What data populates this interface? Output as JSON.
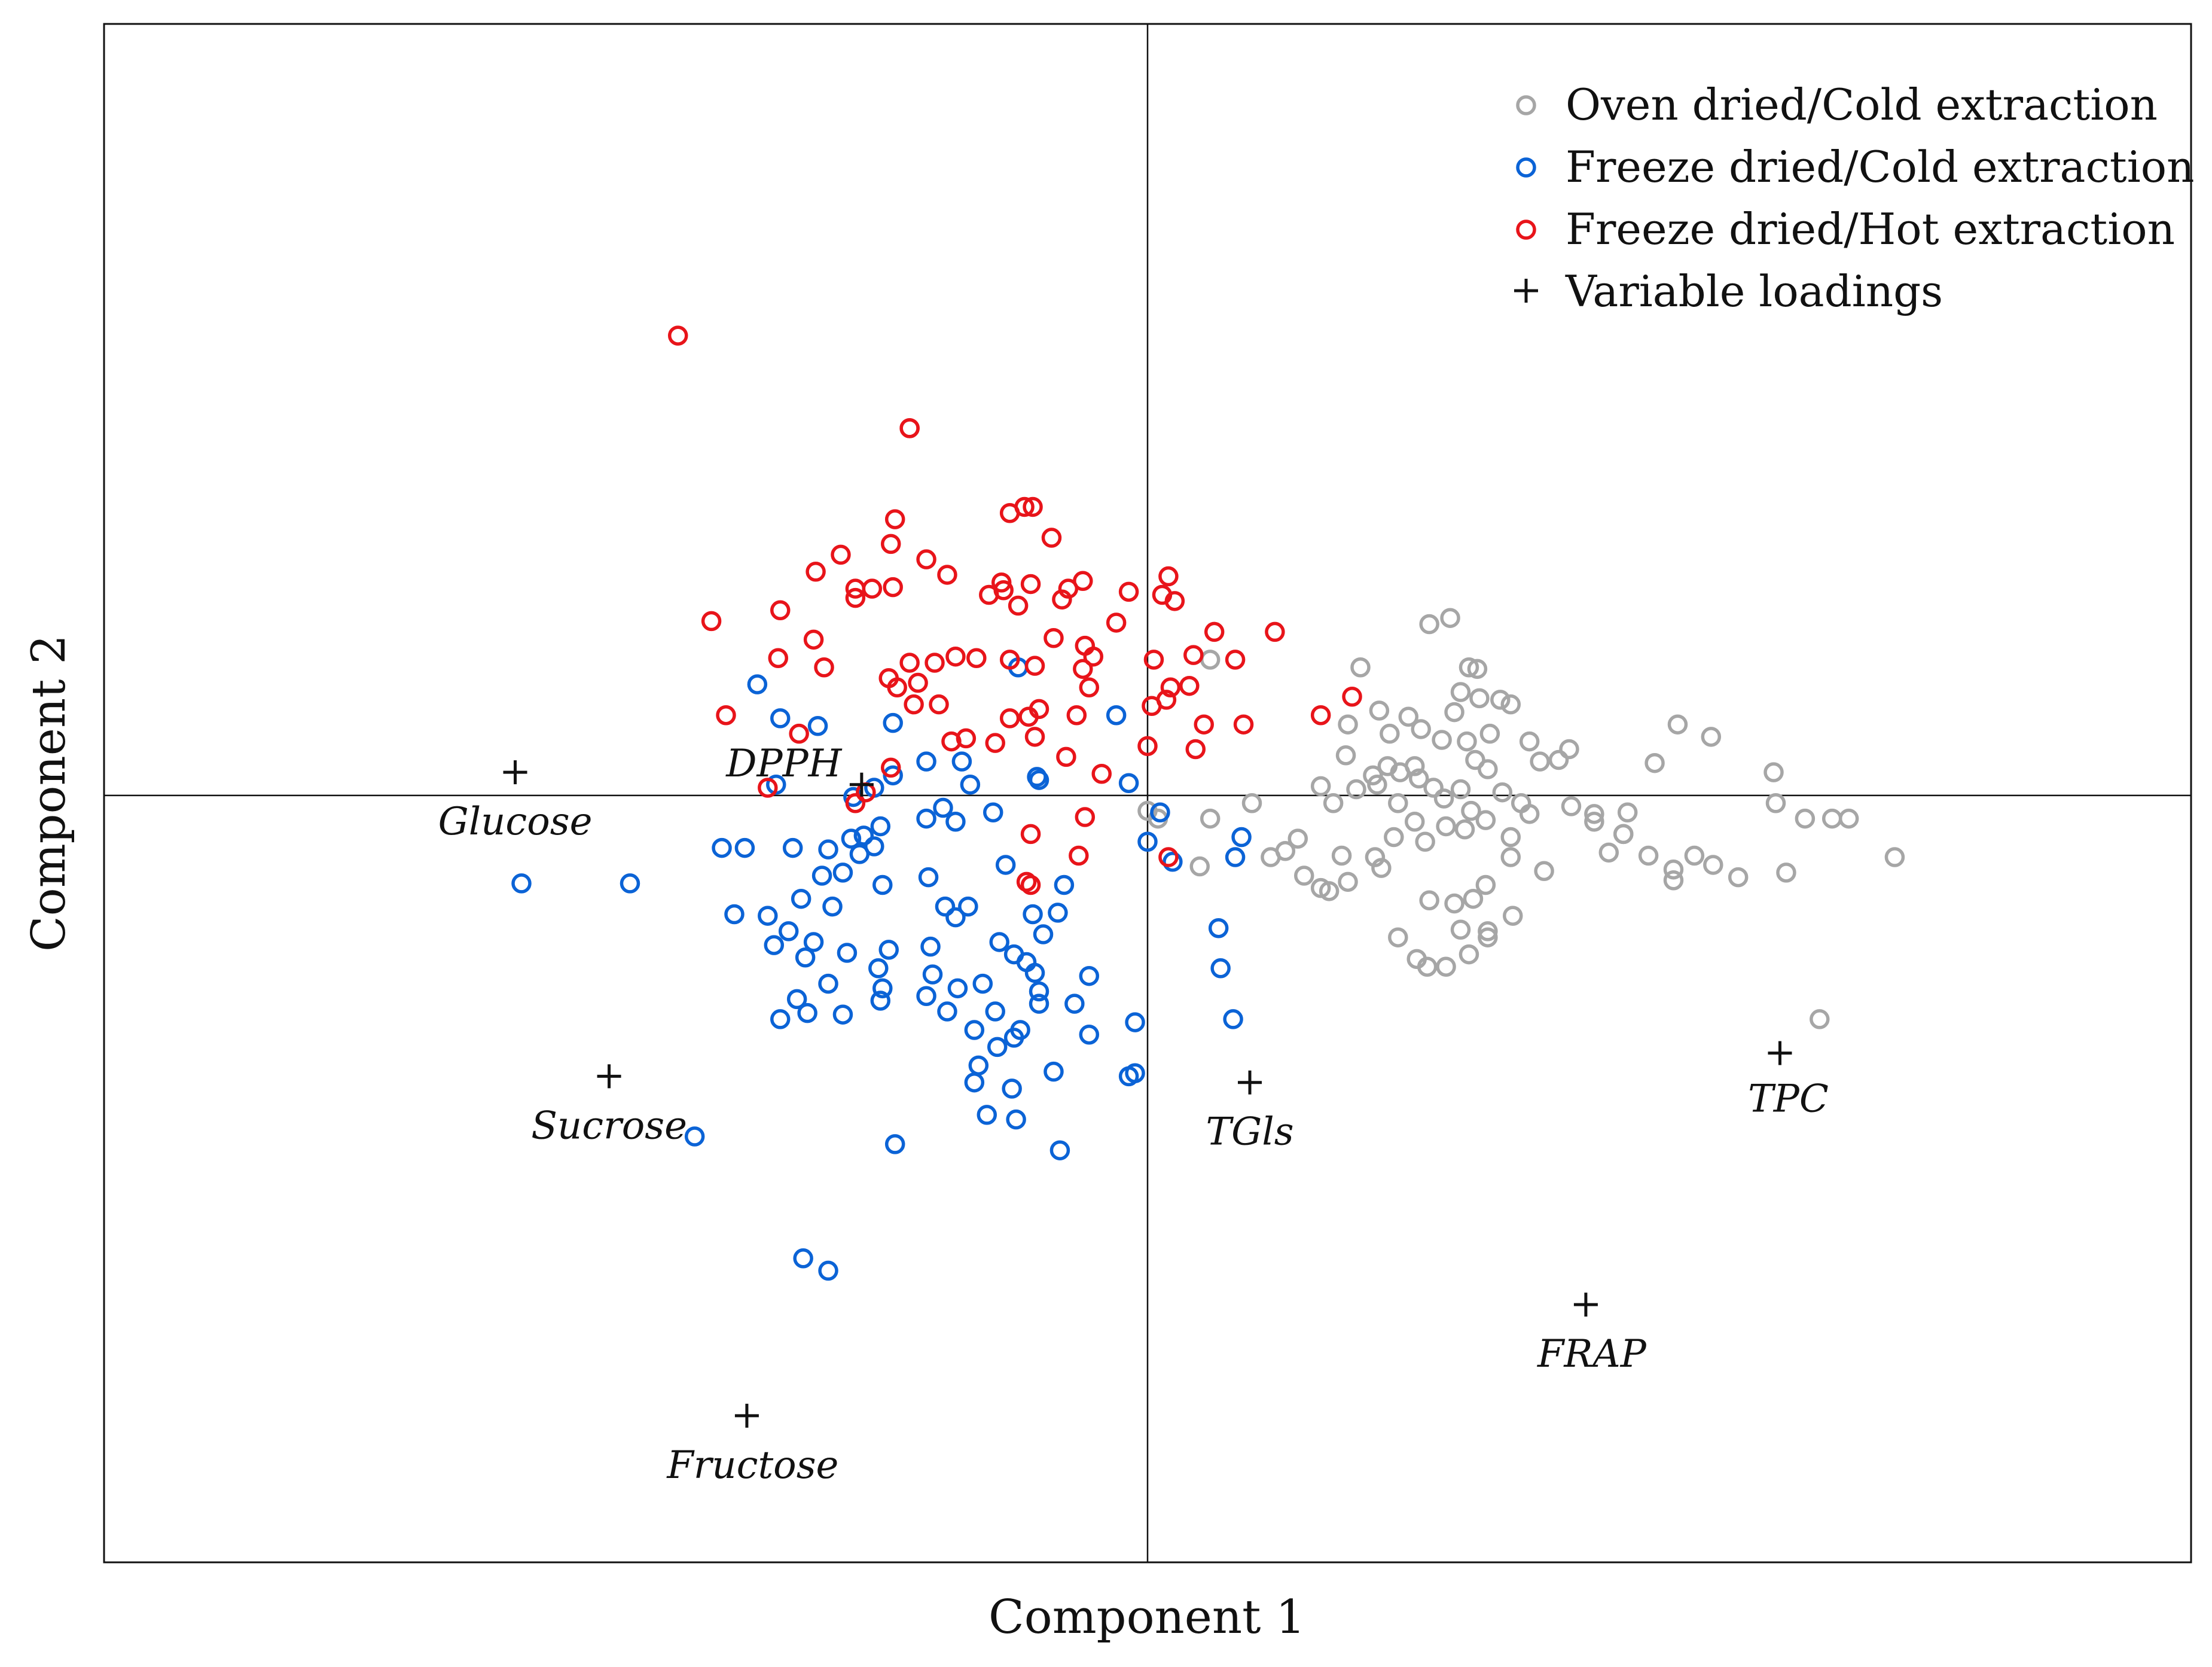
{
  "chart_data": {
    "type": "scatter",
    "title": "",
    "xlabel": "Component 1",
    "ylabel": "Component 2",
    "xlim": [
      -5.0,
      5.0
    ],
    "ylim": [
      -4.97,
      5.0
    ],
    "grid": false,
    "zero_lines": true,
    "legend_position": "top-right",
    "legend": [
      {
        "name": "Oven dried/Cold extraction",
        "marker": "circle",
        "color": "#a6a6a6"
      },
      {
        "name": "Freeze dried/Cold extraction",
        "marker": "circle",
        "color": "#0b63d6"
      },
      {
        "name": "Freeze dried/Hot extraction",
        "marker": "circle",
        "color": "#e8141a"
      },
      {
        "name": "Variable loadings",
        "marker": "plus",
        "color": "#111111"
      }
    ],
    "series": [
      {
        "name": "Oven dried/Cold extraction",
        "color": "#a6a6a6",
        "points": [
          [
            1.35,
            1.11
          ],
          [
            1.45,
            1.15
          ],
          [
            1.02,
            0.83
          ],
          [
            1.11,
            0.55
          ],
          [
            1.25,
            0.51
          ],
          [
            1.16,
            0.4
          ],
          [
            1.31,
            0.43
          ],
          [
            0.96,
            0.46
          ],
          [
            1.54,
            0.83
          ],
          [
            1.58,
            0.82
          ],
          [
            1.69,
            0.62
          ],
          [
            1.74,
            0.59
          ],
          [
            1.59,
            0.63
          ],
          [
            1.47,
            0.54
          ],
          [
            1.5,
            0.67
          ],
          [
            1.64,
            0.4
          ],
          [
            1.83,
            0.35
          ],
          [
            2.02,
            0.3
          ],
          [
            1.53,
            0.35
          ],
          [
            1.41,
            0.36
          ],
          [
            1.28,
            0.19
          ],
          [
            1.15,
            0.19
          ],
          [
            0.95,
            0.26
          ],
          [
            0.83,
            0.06
          ],
          [
            0.89,
            -0.05
          ],
          [
            1.0,
            0.04
          ],
          [
            1.1,
            0.07
          ],
          [
            1.21,
            0.15
          ],
          [
            1.3,
            0.11
          ],
          [
            1.37,
            0.05
          ],
          [
            1.42,
            -0.02
          ],
          [
            1.5,
            0.04
          ],
          [
            1.57,
            0.23
          ],
          [
            1.63,
            0.17
          ],
          [
            1.7,
            0.02
          ],
          [
            1.79,
            -0.05
          ],
          [
            1.88,
            0.22
          ],
          [
            1.97,
            0.23
          ],
          [
            2.03,
            -0.07
          ],
          [
            2.14,
            -0.12
          ],
          [
            2.3,
            -0.11
          ],
          [
            2.43,
            0.21
          ],
          [
            2.54,
            0.46
          ],
          [
            2.7,
            0.38
          ],
          [
            3.0,
            0.15
          ],
          [
            3.01,
            -0.05
          ],
          [
            3.36,
            -0.15
          ],
          [
            3.58,
            -0.4
          ],
          [
            2.28,
            -0.25
          ],
          [
            2.4,
            -0.39
          ],
          [
            2.62,
            -0.39
          ],
          [
            1.83,
            -0.12
          ],
          [
            1.74,
            -0.27
          ],
          [
            1.62,
            -0.16
          ],
          [
            1.52,
            -0.22
          ],
          [
            1.43,
            -0.2
          ],
          [
            1.33,
            -0.3
          ],
          [
            1.28,
            -0.17
          ],
          [
            1.18,
            -0.27
          ],
          [
            1.09,
            -0.4
          ],
          [
            0.96,
            -0.56
          ],
          [
            0.93,
            -0.39
          ],
          [
            0.72,
            -0.28
          ],
          [
            0.66,
            -0.36
          ],
          [
            0.59,
            -0.4
          ],
          [
            0.75,
            -0.52
          ],
          [
            0.83,
            -0.6
          ],
          [
            0.87,
            -0.62
          ],
          [
            1.12,
            -0.47
          ],
          [
            1.35,
            -0.68
          ],
          [
            1.2,
            -0.92
          ],
          [
            1.29,
            -1.06
          ],
          [
            1.47,
            -0.7
          ],
          [
            1.56,
            -0.67
          ],
          [
            1.62,
            -0.58
          ],
          [
            1.74,
            -0.4
          ],
          [
            1.9,
            -0.49
          ],
          [
            2.14,
            -0.17
          ],
          [
            2.21,
            -0.37
          ],
          [
            2.28,
            -0.25
          ],
          [
            1.63,
            -0.92
          ],
          [
            1.75,
            -0.78
          ],
          [
            1.5,
            -0.87
          ],
          [
            1.34,
            -1.11
          ],
          [
            1.43,
            -1.11
          ],
          [
            1.54,
            -1.03
          ],
          [
            1.63,
            -0.88
          ],
          [
            2.52,
            -0.55
          ],
          [
            2.71,
            -0.45
          ],
          [
            2.83,
            -0.53
          ],
          [
            3.06,
            -0.5
          ],
          [
            3.15,
            -0.15
          ],
          [
            3.28,
            -0.15
          ],
          [
            2.52,
            -0.48
          ],
          [
            3.22,
            -1.45
          ],
          [
            0.3,
            -0.15
          ],
          [
            0.5,
            -0.05
          ],
          [
            0.25,
            -0.46
          ],
          [
            0.05,
            -0.15
          ],
          [
            0.0,
            -0.1
          ],
          [
            0.3,
            0.88
          ],
          [
            1.08,
            0.13
          ],
          [
            1.2,
            -0.05
          ],
          [
            1.55,
            -0.1
          ]
        ]
      },
      {
        "name": "Freeze dried/Cold extraction",
        "color": "#0b63d6",
        "points": [
          [
            -1.87,
            0.72
          ],
          [
            -1.76,
            0.5
          ],
          [
            -1.58,
            0.45
          ],
          [
            -1.22,
            0.47
          ],
          [
            -0.62,
            0.83
          ],
          [
            -0.15,
            0.52
          ],
          [
            -1.06,
            0.22
          ],
          [
            -0.89,
            0.22
          ],
          [
            -0.85,
            0.07
          ],
          [
            -0.53,
            0.12
          ],
          [
            -1.78,
            0.07
          ],
          [
            -1.22,
            0.13
          ],
          [
            -1.31,
            0.05
          ],
          [
            -1.41,
            -0.01
          ],
          [
            -1.28,
            -0.2
          ],
          [
            -1.06,
            -0.15
          ],
          [
            -0.98,
            -0.08
          ],
          [
            -0.92,
            -0.17
          ],
          [
            -0.74,
            -0.11
          ],
          [
            -0.52,
            0.1
          ],
          [
            -0.09,
            0.08
          ],
          [
            0.06,
            -0.11
          ],
          [
            0.0,
            -0.3
          ],
          [
            0.12,
            -0.43
          ],
          [
            -1.05,
            -0.53
          ],
          [
            -1.31,
            -0.33
          ],
          [
            -1.36,
            -0.26
          ],
          [
            -1.42,
            -0.28
          ],
          [
            -1.53,
            -0.35
          ],
          [
            -1.38,
            -0.38
          ],
          [
            -1.46,
            -0.5
          ],
          [
            -1.27,
            -0.58
          ],
          [
            -1.66,
            -0.67
          ],
          [
            -1.51,
            -0.72
          ],
          [
            -1.82,
            -0.78
          ],
          [
            -1.6,
            -0.95
          ],
          [
            -1.79,
            -0.97
          ],
          [
            -1.98,
            -0.77
          ],
          [
            -1.64,
            -1.05
          ],
          [
            -1.44,
            -1.02
          ],
          [
            -1.29,
            -1.12
          ],
          [
            -1.04,
            -0.98
          ],
          [
            -1.24,
            -1.0
          ],
          [
            -1.27,
            -1.25
          ],
          [
            -1.03,
            -1.16
          ],
          [
            -0.91,
            -1.25
          ],
          [
            -1.28,
            -1.33
          ],
          [
            -1.53,
            -1.22
          ],
          [
            -1.68,
            -1.32
          ],
          [
            -1.63,
            -1.41
          ],
          [
            -1.76,
            -1.45
          ],
          [
            -1.46,
            -1.42
          ],
          [
            -1.06,
            -1.3
          ],
          [
            -0.79,
            -1.22
          ],
          [
            -0.96,
            -1.4
          ],
          [
            -0.83,
            -1.52
          ],
          [
            -0.73,
            -1.4
          ],
          [
            -0.52,
            -1.35
          ],
          [
            -0.52,
            -1.27
          ],
          [
            -0.61,
            -1.52
          ],
          [
            -0.64,
            -1.57
          ],
          [
            -0.72,
            -1.63
          ],
          [
            -0.81,
            -1.75
          ],
          [
            -0.83,
            -1.86
          ],
          [
            -0.54,
            -1.15
          ],
          [
            -0.58,
            -1.08
          ],
          [
            -0.64,
            -1.03
          ],
          [
            -0.71,
            -0.95
          ],
          [
            -0.86,
            -0.72
          ],
          [
            -0.97,
            -0.72
          ],
          [
            -0.92,
            -0.79
          ],
          [
            -0.5,
            -0.9
          ],
          [
            -0.55,
            -0.77
          ],
          [
            -0.68,
            -0.45
          ],
          [
            -0.4,
            -0.58
          ],
          [
            -0.43,
            -0.76
          ],
          [
            -0.28,
            -1.17
          ],
          [
            -0.35,
            -1.35
          ],
          [
            -0.28,
            -1.55
          ],
          [
            -0.06,
            -1.47
          ],
          [
            -0.06,
            -1.8
          ],
          [
            -0.09,
            -1.82
          ],
          [
            -0.45,
            -1.79
          ],
          [
            -0.65,
            -1.9
          ],
          [
            -0.63,
            -2.1
          ],
          [
            -0.77,
            -2.07
          ],
          [
            -1.21,
            -2.26
          ],
          [
            -0.42,
            -2.3
          ],
          [
            -2.17,
            -2.21
          ],
          [
            -2.48,
            -0.57
          ],
          [
            -2.04,
            -0.34
          ],
          [
            -1.93,
            -0.34
          ],
          [
            -3.0,
            -0.57
          ],
          [
            -1.7,
            -0.34
          ],
          [
            -1.56,
            -0.52
          ],
          [
            -1.72,
            -0.88
          ],
          [
            0.34,
            -0.86
          ],
          [
            0.35,
            -1.12
          ],
          [
            0.41,
            -1.45
          ],
          [
            0.42,
            -0.4
          ],
          [
            0.45,
            -0.27
          ],
          [
            -1.65,
            -3.0
          ],
          [
            -1.53,
            -3.08
          ]
        ]
      },
      {
        "name": "Freeze dried/Hot extraction",
        "color": "#e8141a",
        "points": [
          [
            -2.25,
            2.98
          ],
          [
            -1.14,
            2.38
          ],
          [
            -1.14,
            2.38
          ],
          [
            -0.59,
            1.87
          ],
          [
            -0.66,
            1.83
          ],
          [
            -0.55,
            1.87
          ],
          [
            -0.46,
            1.67
          ],
          [
            -1.21,
            1.79
          ],
          [
            -1.23,
            1.63
          ],
          [
            -1.47,
            1.56
          ],
          [
            -1.59,
            1.45
          ],
          [
            -1.06,
            1.53
          ],
          [
            -1.32,
            1.34
          ],
          [
            -1.4,
            1.34
          ],
          [
            -1.4,
            1.28
          ],
          [
            -1.22,
            1.35
          ],
          [
            -0.96,
            1.43
          ],
          [
            -0.69,
            1.33
          ],
          [
            -0.7,
            1.38
          ],
          [
            -0.56,
            1.37
          ],
          [
            -0.38,
            1.34
          ],
          [
            -0.31,
            1.39
          ],
          [
            -0.41,
            1.27
          ],
          [
            -0.62,
            1.23
          ],
          [
            -0.76,
            1.3
          ],
          [
            -0.09,
            1.32
          ],
          [
            0.07,
            1.3
          ],
          [
            0.1,
            1.42
          ],
          [
            0.13,
            1.26
          ],
          [
            -0.3,
            0.97
          ],
          [
            -0.45,
            1.02
          ],
          [
            -0.66,
            0.88
          ],
          [
            -0.54,
            0.84
          ],
          [
            -0.15,
            1.12
          ],
          [
            0.22,
            0.91
          ],
          [
            0.32,
            1.06
          ],
          [
            0.61,
            1.06
          ],
          [
            0.42,
            0.88
          ],
          [
            -2.09,
            1.13
          ],
          [
            -1.76,
            1.2
          ],
          [
            -1.77,
            0.89
          ],
          [
            -1.6,
            1.01
          ],
          [
            -1.55,
            0.83
          ],
          [
            -1.14,
            0.86
          ],
          [
            -1.02,
            0.86
          ],
          [
            -0.92,
            0.9
          ],
          [
            -0.82,
            0.89
          ],
          [
            -1.1,
            0.73
          ],
          [
            -1.24,
            0.76
          ],
          [
            -1.2,
            0.7
          ],
          [
            -1.12,
            0.59
          ],
          [
            -1.0,
            0.59
          ],
          [
            -0.66,
            0.5
          ],
          [
            -0.57,
            0.51
          ],
          [
            -0.52,
            0.56
          ],
          [
            -0.28,
            0.7
          ],
          [
            -0.31,
            0.82
          ],
          [
            0.02,
            0.58
          ],
          [
            0.09,
            0.62
          ],
          [
            0.11,
            0.7
          ],
          [
            0.2,
            0.71
          ],
          [
            0.27,
            0.46
          ],
          [
            0.23,
            0.3
          ],
          [
            0.0,
            0.32
          ],
          [
            -0.87,
            0.37
          ],
          [
            -0.73,
            0.34
          ],
          [
            -0.94,
            0.35
          ],
          [
            -0.54,
            0.38
          ],
          [
            -2.02,
            0.52
          ],
          [
            -1.23,
            0.18
          ],
          [
            -1.67,
            0.4
          ],
          [
            -1.82,
            0.05
          ],
          [
            -1.4,
            -0.05
          ],
          [
            -1.35,
            0.02
          ],
          [
            -0.56,
            -0.25
          ],
          [
            -0.58,
            -0.56
          ],
          [
            -0.56,
            -0.58
          ],
          [
            -0.3,
            -0.14
          ],
          [
            -0.34,
            0.52
          ],
          [
            -0.26,
            0.9
          ],
          [
            0.46,
            0.46
          ],
          [
            0.83,
            0.52
          ],
          [
            0.98,
            0.64
          ],
          [
            -0.22,
            0.14
          ],
          [
            -0.39,
            0.25
          ],
          [
            0.1,
            -0.4
          ],
          [
            -0.33,
            -0.39
          ],
          [
            0.03,
            0.88
          ]
        ]
      }
    ],
    "loadings": [
      {
        "name": "Glucose",
        "x": -3.03,
        "y": 0.15
      },
      {
        "name": "DPPH",
        "x": -1.37,
        "y": 0.07
      },
      {
        "name": "Sucrose",
        "x": -2.58,
        "y": -1.82
      },
      {
        "name": "Fructose",
        "x": -1.92,
        "y": -4.02
      },
      {
        "name": "TGls",
        "x": 0.49,
        "y": -1.86
      },
      {
        "name": "TPC",
        "x": 3.03,
        "y": -1.67
      },
      {
        "name": "FRAP",
        "x": 2.1,
        "y": -3.3
      }
    ]
  },
  "colors": {
    "oven_cold": "#a6a6a6",
    "freeze_cold": "#0b63d6",
    "freeze_hot": "#e8141a",
    "loadings": "#111111",
    "axes": "#111111"
  }
}
